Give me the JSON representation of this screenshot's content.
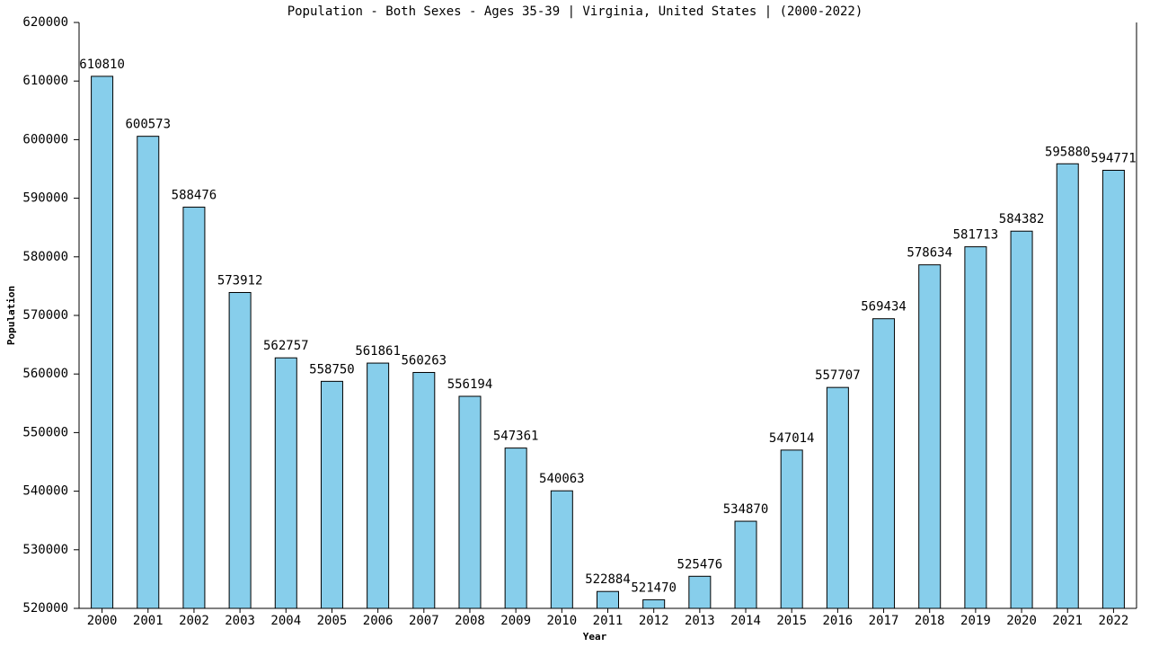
{
  "chart_data": {
    "type": "bar",
    "title": "Population - Both Sexes - Ages 35-39 | Virginia, United States |  (2000-2022)",
    "x_label": "Year",
    "y_label": "Population",
    "categories": [
      "2000",
      "2001",
      "2002",
      "2003",
      "2004",
      "2005",
      "2006",
      "2007",
      "2008",
      "2009",
      "2010",
      "2011",
      "2012",
      "2013",
      "2014",
      "2015",
      "2016",
      "2017",
      "2018",
      "2019",
      "2020",
      "2021",
      "2022"
    ],
    "values": [
      610810,
      600573,
      588476,
      573912,
      562757,
      558750,
      561861,
      560263,
      556194,
      547361,
      540063,
      522884,
      521470,
      525476,
      534870,
      547014,
      557707,
      569434,
      578634,
      581713,
      584382,
      595880,
      594771
    ],
    "color": "#87ceeb",
    "ylim": [
      520000,
      620000
    ],
    "yticks": [
      520000,
      530000,
      540000,
      550000,
      560000,
      570000,
      580000,
      590000,
      600000,
      610000,
      620000
    ],
    "grid": false
  }
}
